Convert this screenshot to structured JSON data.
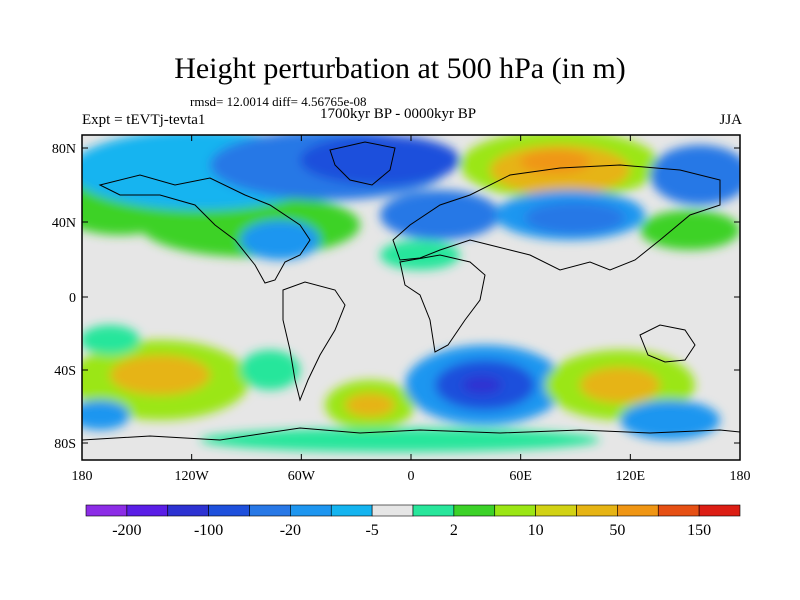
{
  "title": "Height perturbation at 500 hPa (in m)",
  "stats": "rmsd= 12.0014 diff= 4.56765e-08",
  "period": "1700kyr BP - 0000kyr BP",
  "experiment": "Expt = tEVTj-tevta1",
  "season": "JJA",
  "x_ticks": [
    "180",
    "120W",
    "60W",
    "0",
    "60E",
    "120E",
    "180"
  ],
  "y_ticks": [
    "80N",
    "40N",
    "0",
    "40S",
    "80S"
  ],
  "colorbar": {
    "colors": [
      "#8c2de6",
      "#5a1ee6",
      "#2d32d2",
      "#1e50dc",
      "#2878e6",
      "#1e96f0",
      "#14b4f0",
      "#e6e6e6",
      "#28e69b",
      "#3cd228",
      "#9be614",
      "#d2d214",
      "#e6b414",
      "#f09614",
      "#e65014",
      "#dc1e14"
    ],
    "labels": [
      "-200",
      "-100",
      "-20",
      "-5",
      "2",
      "10",
      "50",
      "150"
    ]
  }
}
